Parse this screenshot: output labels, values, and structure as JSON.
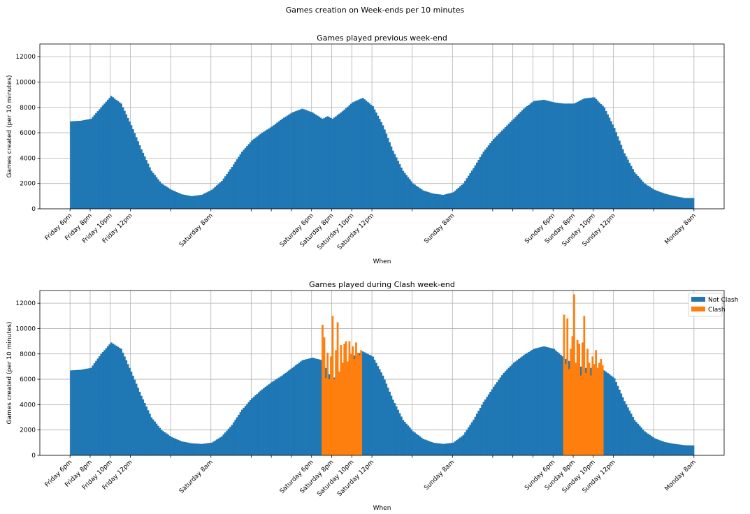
{
  "figure": {
    "suptitle": "Games creation on Week-ends per 10 minutes"
  },
  "colors": {
    "not_clash": "#1f77b4",
    "clash": "#ff7f0e",
    "grid": "#b0b0b0"
  },
  "chart_data": [
    {
      "type": "bar",
      "title": "Games played previous week-end",
      "xlabel": "When",
      "ylabel": "Games created (per 10 minutes)",
      "ylim": [
        0,
        13000
      ],
      "yticks": [
        0,
        2000,
        4000,
        6000,
        8000,
        10000,
        12000
      ],
      "x_unit": "hours since Friday 6pm",
      "xlim": [
        -3,
        65
      ],
      "xticks": [
        {
          "x": 0,
          "label": "Friday 6pm"
        },
        {
          "x": 2,
          "label": "Friday 8pm"
        },
        {
          "x": 4,
          "label": "Friday 10pm"
        },
        {
          "x": 6,
          "label": "Friday 12pm"
        },
        {
          "x": 14,
          "label": "Saturday 8am"
        },
        {
          "x": 24,
          "label": "Saturday 6pm"
        },
        {
          "x": 26,
          "label": "Saturday 8pm"
        },
        {
          "x": 28,
          "label": "Saturday 10pm"
        },
        {
          "x": 30,
          "label": "Saturday 12pm"
        },
        {
          "x": 38,
          "label": "Sunday 8am"
        },
        {
          "x": 48,
          "label": "Sunday 6pm"
        },
        {
          "x": 50,
          "label": "Sunday 8pm"
        },
        {
          "x": 52,
          "label": "Sunday 10pm"
        },
        {
          "x": 54,
          "label": "Sunday 12pm"
        },
        {
          "x": 62,
          "label": "Monday 8am"
        }
      ],
      "minor_grid_x": [
        10,
        18,
        20,
        22,
        34,
        42,
        44,
        46,
        58
      ],
      "grid": true,
      "bin_hours": 0.1667,
      "series": [
        {
          "name": "",
          "color": "#1f77b4",
          "anchors": [
            [
              0,
              6900
            ],
            [
              1,
              6950
            ],
            [
              2,
              7100
            ],
            [
              3,
              8000
            ],
            [
              4,
              8900
            ],
            [
              5,
              8300
            ],
            [
              6,
              6600
            ],
            [
              7,
              4700
            ],
            [
              8,
              3000
            ],
            [
              9,
              2000
            ],
            [
              10,
              1500
            ],
            [
              11,
              1150
            ],
            [
              12,
              1000
            ],
            [
              13,
              1100
            ],
            [
              14,
              1500
            ],
            [
              15,
              2200
            ],
            [
              16,
              3300
            ],
            [
              17,
              4500
            ],
            [
              18,
              5400
            ],
            [
              19,
              6000
            ],
            [
              20,
              6500
            ],
            [
              21,
              7100
            ],
            [
              22,
              7600
            ],
            [
              23,
              7900
            ],
            [
              24,
              7600
            ],
            [
              25,
              7100
            ],
            [
              25.5,
              7300
            ],
            [
              26,
              7100
            ],
            [
              27,
              7700
            ],
            [
              28,
              8400
            ],
            [
              29,
              8750
            ],
            [
              30,
              8100
            ],
            [
              31,
              6600
            ],
            [
              32,
              4600
            ],
            [
              33,
              3000
            ],
            [
              34,
              2000
            ],
            [
              35,
              1450
            ],
            [
              36,
              1200
            ],
            [
              37,
              1100
            ],
            [
              38,
              1300
            ],
            [
              39,
              2000
            ],
            [
              40,
              3200
            ],
            [
              41,
              4500
            ],
            [
              42,
              5500
            ],
            [
              43,
              6300
            ],
            [
              44,
              7100
            ],
            [
              45,
              7900
            ],
            [
              46,
              8500
            ],
            [
              47,
              8600
            ],
            [
              48,
              8400
            ],
            [
              49,
              8300
            ],
            [
              50,
              8300
            ],
            [
              51,
              8700
            ],
            [
              52,
              8800
            ],
            [
              53,
              8000
            ],
            [
              54,
              6400
            ],
            [
              55,
              4400
            ],
            [
              56,
              2900
            ],
            [
              57,
              2000
            ],
            [
              58,
              1500
            ],
            [
              59,
              1200
            ],
            [
              60,
              1000
            ],
            [
              61,
              850
            ],
            [
              62,
              850
            ]
          ]
        }
      ]
    },
    {
      "type": "bar",
      "title": "Games played during Clash week-end",
      "xlabel": "When",
      "ylabel": "Games created (per 10 minutes)",
      "ylim": [
        0,
        13000
      ],
      "yticks": [
        0,
        2000,
        4000,
        6000,
        8000,
        10000,
        12000
      ],
      "x_unit": "hours since Friday 6pm",
      "xlim": [
        -3,
        65
      ],
      "xticks": [
        {
          "x": 0,
          "label": "Friday 6pm"
        },
        {
          "x": 2,
          "label": "Friday 8pm"
        },
        {
          "x": 4,
          "label": "Friday 10pm"
        },
        {
          "x": 6,
          "label": "Friday 12pm"
        },
        {
          "x": 14,
          "label": "Saturday 8am"
        },
        {
          "x": 24,
          "label": "Saturday 6pm"
        },
        {
          "x": 26,
          "label": "Saturday 8pm"
        },
        {
          "x": 28,
          "label": "Saturday 10pm"
        },
        {
          "x": 30,
          "label": "Saturday 12pm"
        },
        {
          "x": 38,
          "label": "Sunday 8am"
        },
        {
          "x": 48,
          "label": "Sunday 6pm"
        },
        {
          "x": 50,
          "label": "Sunday 8pm"
        },
        {
          "x": 52,
          "label": "Sunday 10pm"
        },
        {
          "x": 54,
          "label": "Sunday 12pm"
        },
        {
          "x": 62,
          "label": "Monday 8am"
        }
      ],
      "minor_grid_x": [
        10,
        18,
        20,
        22,
        34,
        42,
        44,
        46,
        58
      ],
      "grid": true,
      "bin_hours": 0.1667,
      "legend": {
        "position": "top-right"
      },
      "series": [
        {
          "name": "Not Clash",
          "color": "#1f77b4",
          "anchors": [
            [
              0,
              6700
            ],
            [
              1,
              6750
            ],
            [
              2,
              6900
            ],
            [
              3,
              8000
            ],
            [
              4,
              8900
            ],
            [
              5,
              8400
            ],
            [
              6,
              6600
            ],
            [
              7,
              4700
            ],
            [
              8,
              3000
            ],
            [
              9,
              2000
            ],
            [
              10,
              1450
            ],
            [
              11,
              1100
            ],
            [
              12,
              950
            ],
            [
              13,
              900
            ],
            [
              14,
              1000
            ],
            [
              15,
              1500
            ],
            [
              16,
              2400
            ],
            [
              17,
              3600
            ],
            [
              18,
              4500
            ],
            [
              19,
              5200
            ],
            [
              20,
              5800
            ],
            [
              21,
              6300
            ],
            [
              22,
              6900
            ],
            [
              23,
              7500
            ],
            [
              24,
              7700
            ],
            [
              25,
              7500
            ],
            [
              25.5,
              6600
            ],
            [
              26,
              6000
            ],
            [
              27,
              6800
            ],
            [
              28,
              7800
            ],
            [
              29,
              8200
            ],
            [
              30,
              7800
            ],
            [
              31,
              6300
            ],
            [
              32,
              4400
            ],
            [
              33,
              2800
            ],
            [
              34,
              1900
            ],
            [
              35,
              1300
            ],
            [
              36,
              1000
            ],
            [
              37,
              900
            ],
            [
              38,
              1000
            ],
            [
              39,
              1600
            ],
            [
              40,
              2800
            ],
            [
              41,
              4200
            ],
            [
              42,
              5400
            ],
            [
              43,
              6500
            ],
            [
              44,
              7300
            ],
            [
              45,
              7900
            ],
            [
              46,
              8400
            ],
            [
              47,
              8600
            ],
            [
              48,
              8400
            ],
            [
              49,
              7700
            ],
            [
              50,
              7200
            ],
            [
              51,
              6900
            ],
            [
              52,
              6900
            ],
            [
              53,
              6700
            ],
            [
              54,
              6100
            ],
            [
              55,
              4300
            ],
            [
              56,
              2800
            ],
            [
              57,
              1900
            ],
            [
              58,
              1350
            ],
            [
              59,
              1050
            ],
            [
              60,
              900
            ],
            [
              61,
              800
            ],
            [
              62,
              780
            ]
          ]
        },
        {
          "name": "Clash",
          "color": "#ff7f0e",
          "values_at_x": [
            [
              25.0,
              10300
            ],
            [
              25.17,
              9300
            ],
            [
              25.33,
              6100
            ],
            [
              25.5,
              8100
            ],
            [
              25.67,
              6000
            ],
            [
              25.83,
              7800
            ],
            [
              26.0,
              11000
            ],
            [
              26.17,
              6000
            ],
            [
              26.33,
              8300
            ],
            [
              26.5,
              10500
            ],
            [
              26.67,
              6600
            ],
            [
              26.83,
              8700
            ],
            [
              27.0,
              7300
            ],
            [
              27.17,
              8800
            ],
            [
              27.33,
              9000
            ],
            [
              27.5,
              7400
            ],
            [
              27.67,
              9000
            ],
            [
              27.83,
              8000
            ],
            [
              28.0,
              8600
            ],
            [
              28.17,
              7600
            ],
            [
              28.33,
              8900
            ],
            [
              28.5,
              8100
            ],
            [
              28.67,
              7900
            ],
            [
              28.83,
              8300
            ],
            [
              49.0,
              11100
            ],
            [
              49.17,
              7200
            ],
            [
              49.33,
              10800
            ],
            [
              49.5,
              6800
            ],
            [
              49.67,
              8400
            ],
            [
              49.83,
              9400
            ],
            [
              50.0,
              12700
            ],
            [
              50.17,
              7300
            ],
            [
              50.33,
              9100
            ],
            [
              50.5,
              8800
            ],
            [
              50.67,
              6300
            ],
            [
              50.83,
              8900
            ],
            [
              51.0,
              11000
            ],
            [
              51.17,
              6500
            ],
            [
              51.33,
              8400
            ],
            [
              51.5,
              7300
            ],
            [
              51.67,
              6300
            ],
            [
              51.83,
              7800
            ],
            [
              52.0,
              7200
            ],
            [
              52.17,
              8300
            ],
            [
              52.33,
              6900
            ],
            [
              52.5,
              7300
            ],
            [
              52.67,
              7600
            ],
            [
              52.83,
              7100
            ]
          ]
        }
      ]
    }
  ]
}
